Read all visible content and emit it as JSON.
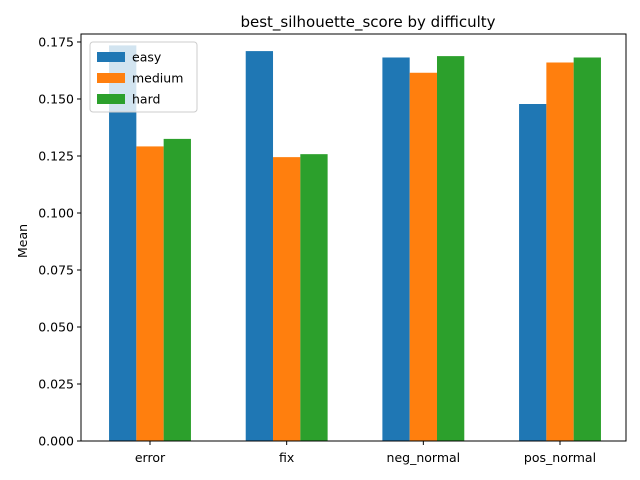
{
  "chart_data": {
    "type": "bar",
    "title": "best_silhouette_score by difficulty",
    "xlabel": "",
    "ylabel": "Mean",
    "categories": [
      "error",
      "fix",
      "neg_normal",
      "pos_normal"
    ],
    "series": [
      {
        "name": "easy",
        "color": "#1f77b4",
        "values": [
          0.1735,
          0.171,
          0.1682,
          0.1478
        ]
      },
      {
        "name": "medium",
        "color": "#ff7f0e",
        "values": [
          0.1292,
          0.1245,
          0.1615,
          0.166
        ]
      },
      {
        "name": "hard",
        "color": "#2ca02c",
        "values": [
          0.1325,
          0.1258,
          0.1688,
          0.1682
        ]
      }
    ],
    "ylim": [
      0,
      0.1785
    ],
    "yticks": [
      "0.000",
      "0.025",
      "0.050",
      "0.075",
      "0.100",
      "0.125",
      "0.150",
      "0.175"
    ],
    "legend_position": "top-left",
    "grid": false
  }
}
